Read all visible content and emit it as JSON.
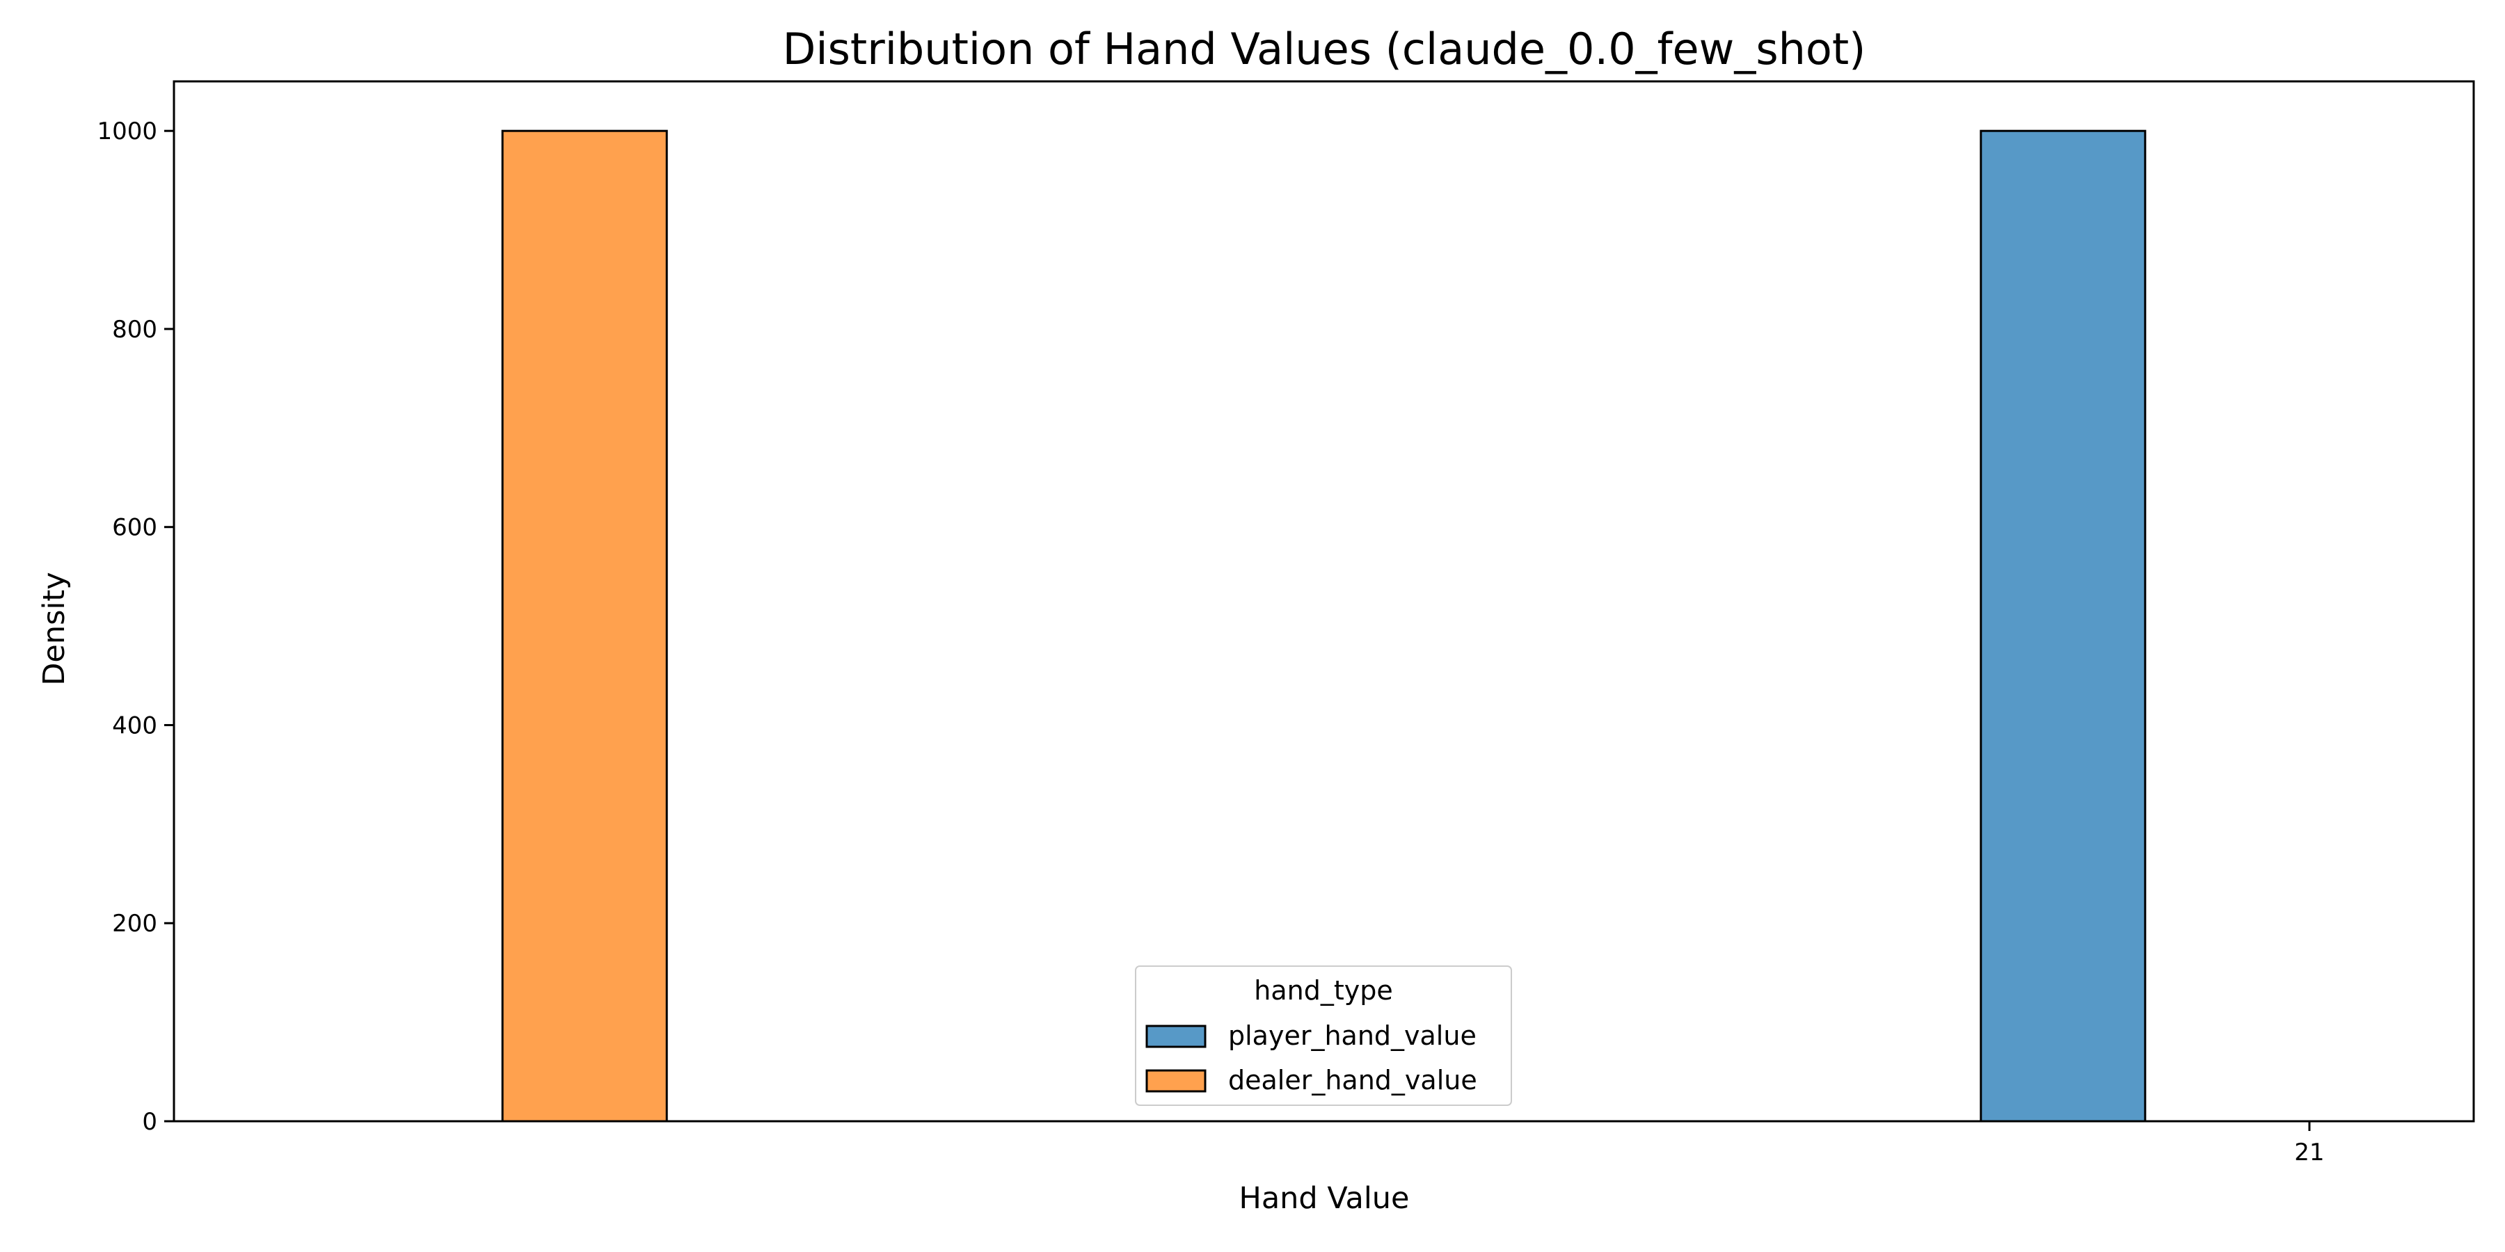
{
  "chart_data": {
    "type": "bar",
    "title": "Distribution of Hand Values (claude_0.0_few_shot)",
    "xlabel": "Hand Value",
    "ylabel": "Density",
    "xlim": [
      17.75,
      21.25
    ],
    "ylim": [
      0,
      1050
    ],
    "x_ticks": [
      21
    ],
    "y_ticks": [
      0,
      200,
      400,
      600,
      800,
      1000
    ],
    "grid": false,
    "legend": {
      "title": "hand_type",
      "placement": "bottom-center"
    },
    "series": [
      {
        "name": "player_hand_value",
        "color": "#5799c7",
        "bars": [
          {
            "x0": 20.5,
            "x1": 20.75,
            "value": 1000
          }
        ]
      },
      {
        "name": "dealer_hand_value",
        "color": "#ffa14e",
        "bars": [
          {
            "x0": 18.25,
            "x1": 18.5,
            "value": 1000
          }
        ]
      }
    ],
    "baseline": {
      "x0": 17.9,
      "x1": 21.0
    }
  }
}
